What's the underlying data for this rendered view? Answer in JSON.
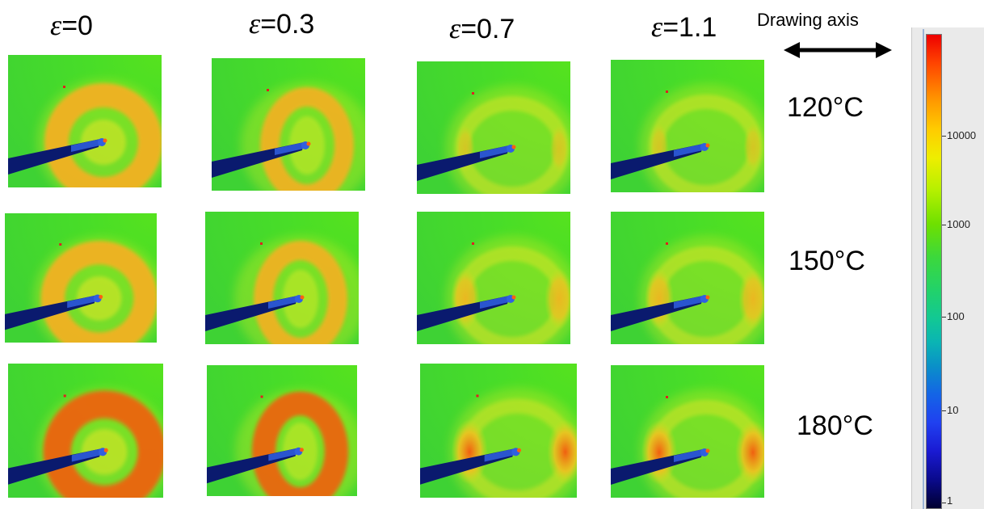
{
  "columns": [
    {
      "symbol": "ε",
      "value": "=0"
    },
    {
      "symbol": "ε",
      "value": "=0.3"
    },
    {
      "symbol": "ε",
      "value": "=0.7"
    },
    {
      "symbol": "ε",
      "value": "=1.1"
    }
  ],
  "rows": [
    "120°C",
    "150°C",
    "180°C"
  ],
  "axis_label": "Drawing axis",
  "colorbar": {
    "ticks": [
      "10000",
      "1000",
      "100",
      "10",
      "1"
    ],
    "colors": [
      "#ee0000",
      "#ffcc00",
      "#6ee000",
      "#12c894",
      "#1464e6",
      "#000030"
    ]
  },
  "panel_colors": {
    "background": "#48dd28",
    "ring": "#f5b020",
    "ring_hot": "#f06010",
    "beam_stop": "#0a1a6e",
    "beam_stop_tip": "#3060e0",
    "marker": "#e02020"
  },
  "icons": [
    "double-arrow-icon"
  ]
}
